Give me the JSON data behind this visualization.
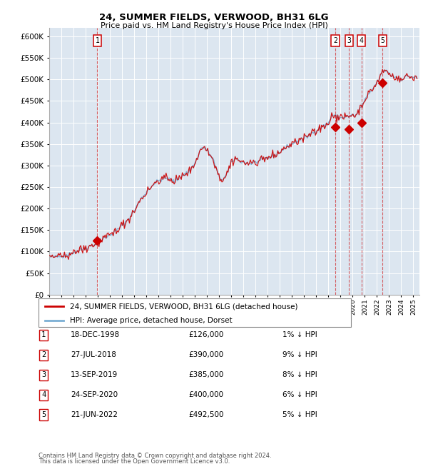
{
  "title": "24, SUMMER FIELDS, VERWOOD, BH31 6LG",
  "subtitle": "Price paid vs. HM Land Registry's House Price Index (HPI)",
  "background_color": "#dce6f0",
  "plot_bg_color": "#dce6f0",
  "hpi_color": "#7bafd4",
  "price_color": "#cc0000",
  "ylim": [
    0,
    620000
  ],
  "yticks": [
    0,
    50000,
    100000,
    150000,
    200000,
    250000,
    300000,
    350000,
    400000,
    450000,
    500000,
    550000,
    600000
  ],
  "ytick_labels": [
    "£0",
    "£50K",
    "£100K",
    "£150K",
    "£200K",
    "£250K",
    "£300K",
    "£350K",
    "£400K",
    "£450K",
    "£500K",
    "£550K",
    "£600K"
  ],
  "sales": [
    {
      "num": 1,
      "date": "18-DEC-1998",
      "price": 126000,
      "year": 1998.96,
      "hpi_pct": "1%"
    },
    {
      "num": 2,
      "date": "27-JUL-2018",
      "price": 390000,
      "year": 2018.57,
      "hpi_pct": "9%"
    },
    {
      "num": 3,
      "date": "13-SEP-2019",
      "price": 385000,
      "year": 2019.7,
      "hpi_pct": "8%"
    },
    {
      "num": 4,
      "date": "24-SEP-2020",
      "price": 400000,
      "year": 2020.73,
      "hpi_pct": "6%"
    },
    {
      "num": 5,
      "date": "21-JUN-2022",
      "price": 492500,
      "year": 2022.47,
      "hpi_pct": "5%"
    }
  ],
  "legend_entry1": "24, SUMMER FIELDS, VERWOOD, BH31 6LG (detached house)",
  "legend_entry2": "HPI: Average price, detached house, Dorset",
  "footer1": "Contains HM Land Registry data © Crown copyright and database right 2024.",
  "footer2": "This data is licensed under the Open Government Licence v3.0.",
  "xmin": 1995.0,
  "xmax": 2025.5,
  "anchors_hpi": [
    [
      1995.0,
      88000
    ],
    [
      1995.5,
      87000
    ],
    [
      1996.0,
      90000
    ],
    [
      1996.5,
      93000
    ],
    [
      1997.0,
      98000
    ],
    [
      1997.5,
      104000
    ],
    [
      1998.0,
      108000
    ],
    [
      1998.5,
      115000
    ],
    [
      1999.0,
      120000
    ],
    [
      1999.5,
      130000
    ],
    [
      2000.0,
      138000
    ],
    [
      2000.5,
      148000
    ],
    [
      2001.0,
      160000
    ],
    [
      2001.5,
      175000
    ],
    [
      2002.0,
      195000
    ],
    [
      2002.5,
      220000
    ],
    [
      2003.0,
      238000
    ],
    [
      2003.5,
      255000
    ],
    [
      2004.0,
      265000
    ],
    [
      2004.5,
      270000
    ],
    [
      2005.0,
      268000
    ],
    [
      2005.3,
      263000
    ],
    [
      2005.6,
      268000
    ],
    [
      2006.0,
      278000
    ],
    [
      2006.5,
      285000
    ],
    [
      2007.0,
      305000
    ],
    [
      2007.5,
      340000
    ],
    [
      2007.8,
      342000
    ],
    [
      2008.0,
      335000
    ],
    [
      2008.5,
      315000
    ],
    [
      2009.0,
      272000
    ],
    [
      2009.3,
      268000
    ],
    [
      2009.6,
      278000
    ],
    [
      2010.0,
      305000
    ],
    [
      2010.3,
      318000
    ],
    [
      2010.6,
      312000
    ],
    [
      2011.0,
      308000
    ],
    [
      2011.5,
      304000
    ],
    [
      2012.0,
      308000
    ],
    [
      2012.5,
      312000
    ],
    [
      2013.0,
      318000
    ],
    [
      2013.5,
      322000
    ],
    [
      2014.0,
      332000
    ],
    [
      2014.5,
      342000
    ],
    [
      2015.0,
      350000
    ],
    [
      2015.5,
      358000
    ],
    [
      2016.0,
      362000
    ],
    [
      2016.5,
      372000
    ],
    [
      2017.0,
      382000
    ],
    [
      2017.5,
      390000
    ],
    [
      2018.0,
      398000
    ],
    [
      2018.3,
      418000
    ],
    [
      2018.57,
      415000
    ],
    [
      2018.8,
      412000
    ],
    [
      2019.0,
      410000
    ],
    [
      2019.5,
      415000
    ],
    [
      2019.7,
      413000
    ],
    [
      2020.0,
      418000
    ],
    [
      2020.3,
      416000
    ],
    [
      2020.6,
      432000
    ],
    [
      2021.0,
      452000
    ],
    [
      2021.5,
      472000
    ],
    [
      2022.0,
      492000
    ],
    [
      2022.47,
      518000
    ],
    [
      2022.8,
      522000
    ],
    [
      2023.0,
      512000
    ],
    [
      2023.5,
      506000
    ],
    [
      2024.0,
      500000
    ],
    [
      2024.5,
      508000
    ],
    [
      2025.0,
      505000
    ],
    [
      2025.3,
      503000
    ]
  ]
}
